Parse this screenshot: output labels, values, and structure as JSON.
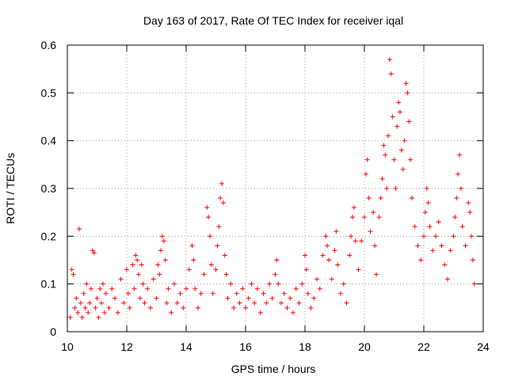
{
  "chart_data": {
    "type": "scatter",
    "title": "Day 163 of 2017, Rate Of TEC Index for receiver iqal",
    "xlabel": "GPS time / hours",
    "ylabel": "ROTI / TECUs",
    "xlim": [
      10,
      24
    ],
    "ylim": [
      0,
      0.6
    ],
    "x_ticks": [
      10,
      12,
      14,
      16,
      18,
      20,
      22,
      24
    ],
    "x_tick_labels": [
      "10",
      "12",
      "14",
      "16",
      "18",
      "20",
      "22",
      "24"
    ],
    "y_ticks": [
      0,
      0.1,
      0.2,
      0.3,
      0.4,
      0.5,
      0.6
    ],
    "y_tick_labels": [
      "0",
      "0.1",
      "0.2",
      "0.3",
      "0.4",
      "0.5",
      "0.6"
    ],
    "grid": true,
    "marker": "+",
    "color": "#ff0000",
    "series": [
      {
        "name": "ROTI",
        "points": [
          [
            10.1,
            0.03
          ],
          [
            10.15,
            0.13
          ],
          [
            10.2,
            0.12
          ],
          [
            10.25,
            0.05
          ],
          [
            10.3,
            0.07
          ],
          [
            10.35,
            0.04
          ],
          [
            10.4,
            0.215
          ],
          [
            10.45,
            0.06
          ],
          [
            10.5,
            0.03
          ],
          [
            10.55,
            0.08
          ],
          [
            10.6,
            0.05
          ],
          [
            10.65,
            0.1
          ],
          [
            10.7,
            0.04
          ],
          [
            10.75,
            0.06
          ],
          [
            10.8,
            0.09
          ],
          [
            10.85,
            0.17
          ],
          [
            10.9,
            0.165
          ],
          [
            10.95,
            0.05
          ],
          [
            11.0,
            0.07
          ],
          [
            11.05,
            0.03
          ],
          [
            11.1,
            0.09
          ],
          [
            11.15,
            0.06
          ],
          [
            11.2,
            0.1
          ],
          [
            11.25,
            0.04
          ],
          [
            11.3,
            0.08
          ],
          [
            11.4,
            0.05
          ],
          [
            11.5,
            0.09
          ],
          [
            11.6,
            0.07
          ],
          [
            11.7,
            0.04
          ],
          [
            11.8,
            0.11
          ],
          [
            11.9,
            0.06
          ],
          [
            12.0,
            0.13
          ],
          [
            12.05,
            0.08
          ],
          [
            12.1,
            0.05
          ],
          [
            12.2,
            0.14
          ],
          [
            12.25,
            0.09
          ],
          [
            12.3,
            0.16
          ],
          [
            12.35,
            0.15
          ],
          [
            12.4,
            0.12
          ],
          [
            12.45,
            0.07
          ],
          [
            12.5,
            0.14
          ],
          [
            12.55,
            0.1
          ],
          [
            12.6,
            0.06
          ],
          [
            12.7,
            0.09
          ],
          [
            12.8,
            0.05
          ],
          [
            12.9,
            0.11
          ],
          [
            13.0,
            0.07
          ],
          [
            13.05,
            0.14
          ],
          [
            13.1,
            0.12
          ],
          [
            13.15,
            0.17
          ],
          [
            13.2,
            0.2
          ],
          [
            13.25,
            0.19
          ],
          [
            13.3,
            0.15
          ],
          [
            13.35,
            0.06
          ],
          [
            13.4,
            0.09
          ],
          [
            13.5,
            0.04
          ],
          [
            13.6,
            0.1
          ],
          [
            13.7,
            0.06
          ],
          [
            13.8,
            0.08
          ],
          [
            13.9,
            0.05
          ],
          [
            14.0,
            0.09
          ],
          [
            14.1,
            0.13
          ],
          [
            14.2,
            0.18
          ],
          [
            14.25,
            0.15
          ],
          [
            14.3,
            0.09
          ],
          [
            14.4,
            0.05
          ],
          [
            14.5,
            0.08
          ],
          [
            14.6,
            0.12
          ],
          [
            14.7,
            0.26
          ],
          [
            14.75,
            0.24
          ],
          [
            14.8,
            0.2
          ],
          [
            14.85,
            0.14
          ],
          [
            14.9,
            0.08
          ],
          [
            15.0,
            0.13
          ],
          [
            15.05,
            0.18
          ],
          [
            15.1,
            0.22
          ],
          [
            15.15,
            0.28
          ],
          [
            15.2,
            0.31
          ],
          [
            15.25,
            0.27
          ],
          [
            15.3,
            0.16
          ],
          [
            15.35,
            0.12
          ],
          [
            15.4,
            0.07
          ],
          [
            15.5,
            0.1
          ],
          [
            15.6,
            0.05
          ],
          [
            15.7,
            0.08
          ],
          [
            15.8,
            0.06
          ],
          [
            15.9,
            0.09
          ],
          [
            16.0,
            0.05
          ],
          [
            16.1,
            0.07
          ],
          [
            16.2,
            0.1
          ],
          [
            16.3,
            0.06
          ],
          [
            16.4,
            0.09
          ],
          [
            16.5,
            0.04
          ],
          [
            16.6,
            0.08
          ],
          [
            16.7,
            0.06
          ],
          [
            16.8,
            0.1
          ],
          [
            16.9,
            0.07
          ],
          [
            17.0,
            0.12
          ],
          [
            17.05,
            0.15
          ],
          [
            17.1,
            0.1
          ],
          [
            17.2,
            0.06
          ],
          [
            17.3,
            0.08
          ],
          [
            17.4,
            0.05
          ],
          [
            17.5,
            0.07
          ],
          [
            17.6,
            0.04
          ],
          [
            17.7,
            0.09
          ],
          [
            17.8,
            0.06
          ],
          [
            17.9,
            0.1
          ],
          [
            18.0,
            0.16
          ],
          [
            18.05,
            0.13
          ],
          [
            18.1,
            0.08
          ],
          [
            18.2,
            0.05
          ],
          [
            18.3,
            0.07
          ],
          [
            18.4,
            0.11
          ],
          [
            18.5,
            0.09
          ],
          [
            18.6,
            0.16
          ],
          [
            18.7,
            0.2
          ],
          [
            18.75,
            0.18
          ],
          [
            18.8,
            0.15
          ],
          [
            18.9,
            0.11
          ],
          [
            19.0,
            0.17
          ],
          [
            19.05,
            0.21
          ],
          [
            19.1,
            0.14
          ],
          [
            19.2,
            0.08
          ],
          [
            19.3,
            0.1
          ],
          [
            19.4,
            0.06
          ],
          [
            19.5,
            0.16
          ],
          [
            19.55,
            0.2
          ],
          [
            19.6,
            0.24
          ],
          [
            19.65,
            0.26
          ],
          [
            19.7,
            0.19
          ],
          [
            19.8,
            0.13
          ],
          [
            19.9,
            0.19
          ],
          [
            20.0,
            0.24
          ],
          [
            20.05,
            0.33
          ],
          [
            20.1,
            0.36
          ],
          [
            20.15,
            0.28
          ],
          [
            20.2,
            0.21
          ],
          [
            20.3,
            0.25
          ],
          [
            20.35,
            0.18
          ],
          [
            20.4,
            0.12
          ],
          [
            20.5,
            0.24
          ],
          [
            20.55,
            0.28
          ],
          [
            20.6,
            0.32
          ],
          [
            20.65,
            0.39
          ],
          [
            20.7,
            0.37
          ],
          [
            20.75,
            0.3
          ],
          [
            20.8,
            0.41
          ],
          [
            20.85,
            0.57
          ],
          [
            20.9,
            0.54
          ],
          [
            20.95,
            0.45
          ],
          [
            21.0,
            0.36
          ],
          [
            21.05,
            0.3
          ],
          [
            21.1,
            0.43
          ],
          [
            21.15,
            0.48
          ],
          [
            21.2,
            0.46
          ],
          [
            21.25,
            0.38
          ],
          [
            21.3,
            0.34
          ],
          [
            21.35,
            0.4
          ],
          [
            21.4,
            0.52
          ],
          [
            21.45,
            0.5
          ],
          [
            21.5,
            0.44
          ],
          [
            21.55,
            0.36
          ],
          [
            21.6,
            0.28
          ],
          [
            21.7,
            0.22
          ],
          [
            21.8,
            0.18
          ],
          [
            21.9,
            0.15
          ],
          [
            22.0,
            0.2
          ],
          [
            22.05,
            0.25
          ],
          [
            22.1,
            0.3
          ],
          [
            22.15,
            0.27
          ],
          [
            22.2,
            0.22
          ],
          [
            22.3,
            0.17
          ],
          [
            22.4,
            0.2
          ],
          [
            22.5,
            0.23
          ],
          [
            22.6,
            0.18
          ],
          [
            22.7,
            0.14
          ],
          [
            22.8,
            0.11
          ],
          [
            22.9,
            0.17
          ],
          [
            23.0,
            0.2
          ],
          [
            23.05,
            0.24
          ],
          [
            23.1,
            0.28
          ],
          [
            23.15,
            0.33
          ],
          [
            23.2,
            0.37
          ],
          [
            23.25,
            0.3
          ],
          [
            23.3,
            0.22
          ],
          [
            23.4,
            0.18
          ],
          [
            23.5,
            0.27
          ],
          [
            23.55,
            0.25
          ],
          [
            23.6,
            0.2
          ],
          [
            23.65,
            0.15
          ],
          [
            23.7,
            0.1
          ]
        ]
      }
    ]
  }
}
